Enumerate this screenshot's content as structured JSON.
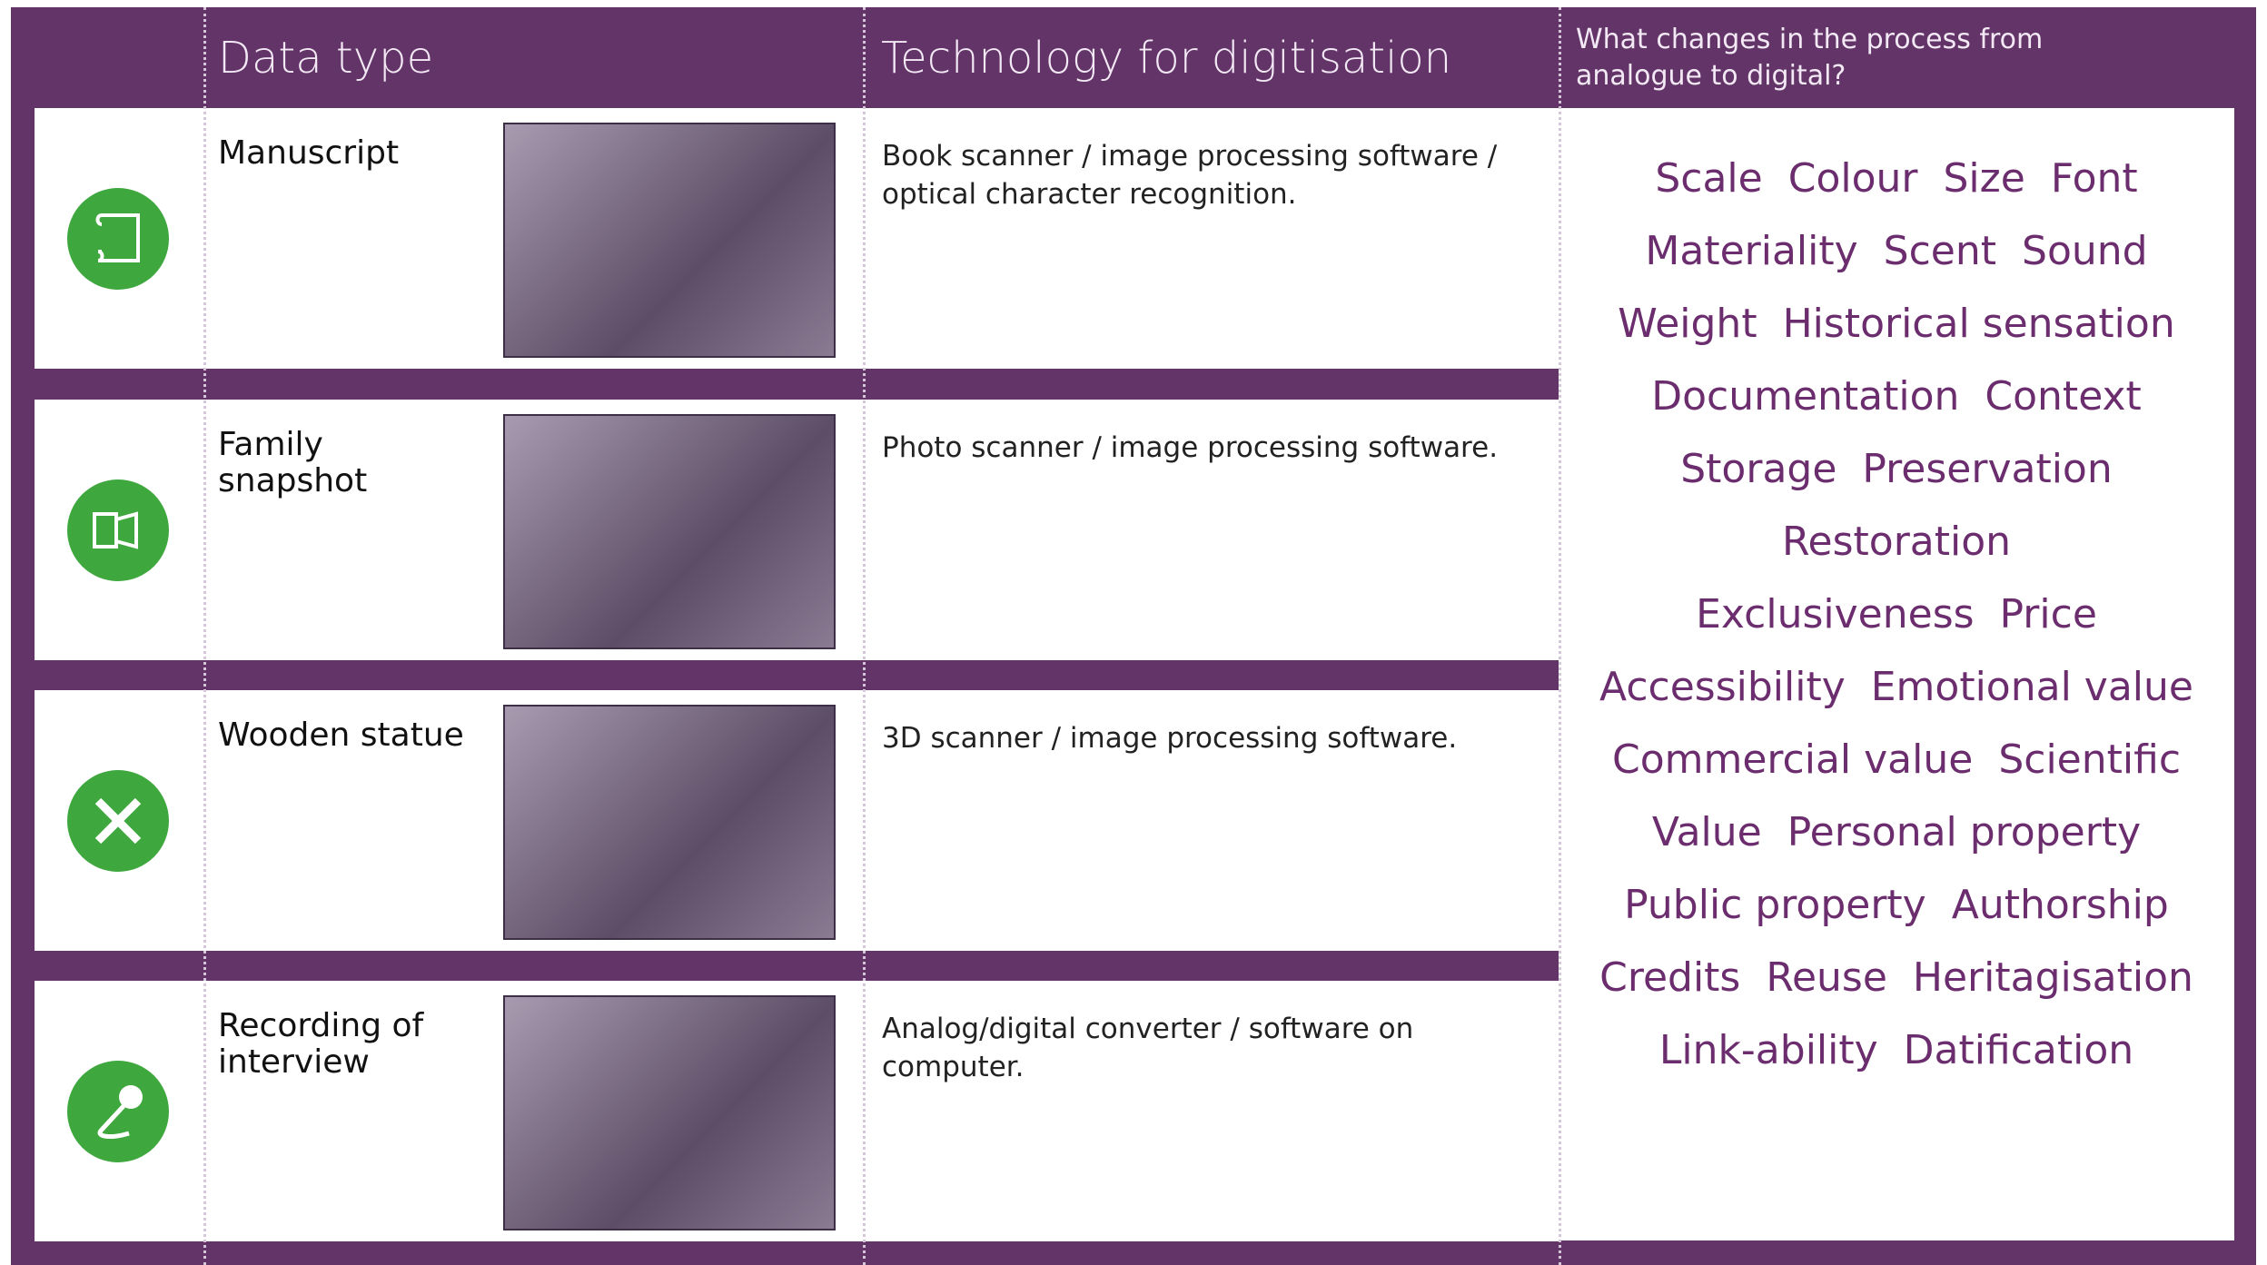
{
  "header": {
    "data_type": "Data type",
    "technology": "Technology for digitisation",
    "changes": "What changes in the process from analogue to digital?"
  },
  "rows": [
    {
      "label": "Manuscript",
      "technology": "Book scanner / image processing software / optical character recognition."
    },
    {
      "label": "Family snapshot",
      "technology": "Photo scanner / image processing software."
    },
    {
      "label": "Wooden statue",
      "technology": "3D scanner / image processing software."
    },
    {
      "label": "Recording of interview",
      "technology": "Analog/digital converter / software on computer."
    }
  ],
  "changes": [
    [
      "Scale",
      "Colour",
      "Size",
      "Font"
    ],
    [
      "Materiality",
      "Scent",
      "Sound"
    ],
    [
      "Weight",
      "Historical sensation"
    ],
    [
      "Documentation",
      "Context"
    ],
    [
      "Storage",
      "Preservation"
    ],
    [
      "Restoration"
    ],
    [
      "Exclusiveness",
      "Price"
    ],
    [
      "Accessibility",
      "Emotional value"
    ],
    [
      "Commercial value",
      "Scientific"
    ],
    [
      "Value",
      "Personal property"
    ],
    [
      "Public property",
      "Authorship"
    ],
    [
      "Credits",
      "Reuse",
      "Heritagisation"
    ],
    [
      "Link-ability",
      "Datification"
    ]
  ]
}
